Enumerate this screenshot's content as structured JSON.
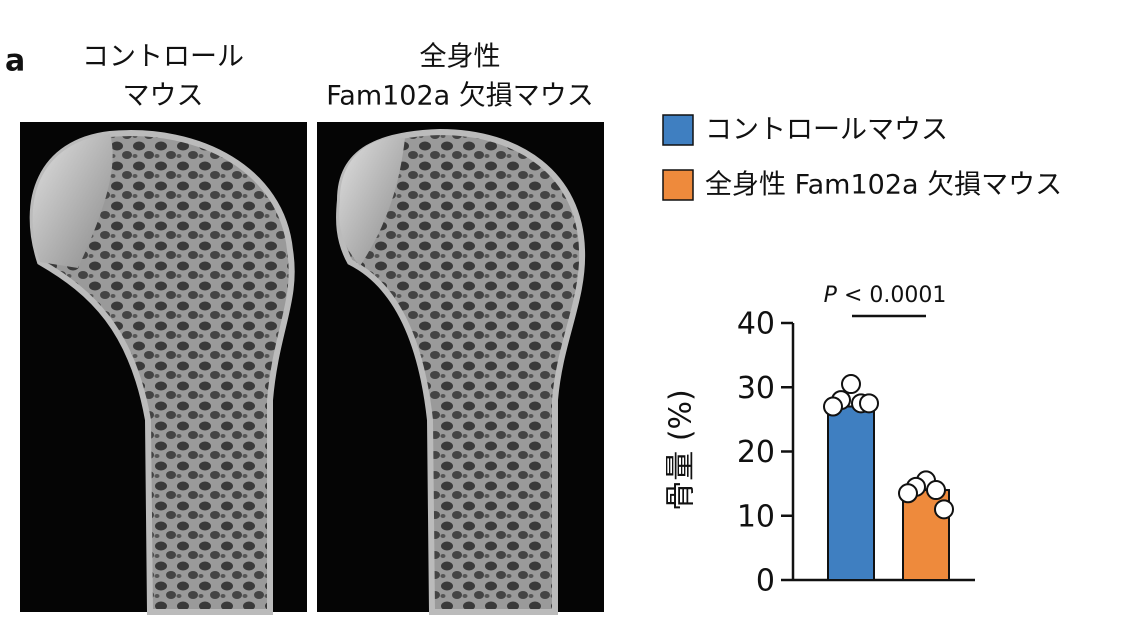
{
  "panel_label": "a",
  "images": [
    {
      "caption": [
        "コントロール",
        "マウス"
      ]
    },
    {
      "caption": [
        "全身性",
        "Fam102a 欠損マウス"
      ]
    }
  ],
  "chart_data": {
    "type": "bar",
    "y_label": "骨量 (%)",
    "annotation": {
      "italic": "P",
      "text": "< 0.0001"
    },
    "series": [
      {
        "name": "コントロールマウス",
        "color": "#3f7fc1",
        "values": [
          27
        ],
        "points": [
          30.5,
          28,
          27.5,
          27,
          27.5
        ]
      },
      {
        "name": "全身性 Fam102a 欠損マウス",
        "color": "#ee8a3c",
        "values": [
          14
        ],
        "points": [
          15.5,
          14.5,
          14,
          13.5,
          11
        ]
      }
    ],
    "ylim": [
      0,
      40
    ],
    "yticks": [
      0,
      10,
      20,
      30,
      40
    ]
  }
}
